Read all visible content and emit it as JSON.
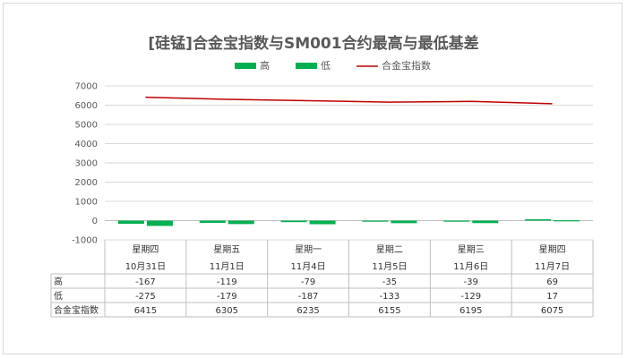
{
  "chart_data": {
    "type": "bar",
    "title": "[硅锰]合金宝指数与SM001合约最高与最低基差",
    "categories": [
      {
        "weekday": "星期四",
        "date": "10月31日"
      },
      {
        "weekday": "星期五",
        "date": "11月1日"
      },
      {
        "weekday": "星期一",
        "date": "11月4日"
      },
      {
        "weekday": "星期二",
        "date": "11月5日"
      },
      {
        "weekday": "星期三",
        "date": "11月6日"
      },
      {
        "weekday": "星期四",
        "date": "11月7日"
      }
    ],
    "series": [
      {
        "name": "高",
        "kind": "bar",
        "color": "#00b050",
        "values": [
          -167,
          -119,
          -79,
          -35,
          -39,
          69
        ]
      },
      {
        "name": "低",
        "kind": "bar",
        "color": "#00b050",
        "values": [
          -275,
          -179,
          -187,
          -133,
          -129,
          17
        ]
      },
      {
        "name": "合金宝指数",
        "kind": "line",
        "color": "#c00000",
        "values": [
          6415,
          6305,
          6235,
          6155,
          6195,
          6075
        ]
      }
    ],
    "yaxis": {
      "min": -1000,
      "max": 7000,
      "step": 1000,
      "ticks": [
        "-1000",
        "0",
        "1000",
        "2000",
        "3000",
        "4000",
        "5000",
        "6000",
        "7000"
      ]
    },
    "grid": true,
    "legend_position": "top-center",
    "data_table": true
  }
}
